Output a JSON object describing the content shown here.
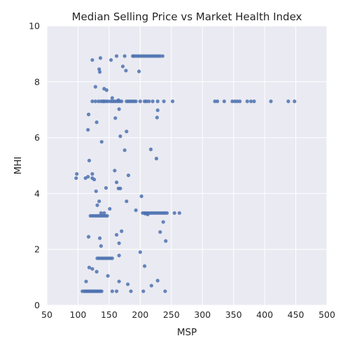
{
  "chart_data": {
    "type": "scatter",
    "title": "Median Selling Price vs Market Health Index",
    "xlabel": "MSP",
    "ylabel": "MHI",
    "xlim": [
      50,
      500
    ],
    "ylim": [
      0,
      10
    ],
    "x_ticks": [
      "50",
      "100",
      "150",
      "200",
      "250",
      "300",
      "350",
      "400",
      "450",
      "500"
    ],
    "y_ticks": [
      "0",
      "2",
      "4",
      "6",
      "8",
      "10"
    ],
    "grid": true,
    "colors": {
      "point": "#4c72b0",
      "background": "#eaeaf2",
      "grid": "#ffffff"
    },
    "series": [
      {
        "points": [
          [
            107,
            0.5
          ],
          [
            110,
            0.5
          ],
          [
            112,
            0.5
          ],
          [
            114,
            0.5
          ],
          [
            116,
            0.5
          ],
          [
            118,
            0.5
          ],
          [
            120,
            0.5
          ],
          [
            122,
            0.5
          ],
          [
            124,
            0.5
          ],
          [
            126,
            0.5
          ],
          [
            128,
            0.5
          ],
          [
            130,
            0.5
          ],
          [
            132,
            0.5
          ],
          [
            134,
            0.5
          ],
          [
            136,
            0.5
          ],
          [
            138,
            0.5
          ],
          [
            155,
            0.5
          ],
          [
            162,
            0.5
          ],
          [
            185,
            0.5
          ],
          [
            205,
            0.5
          ],
          [
            240,
            0.5
          ],
          [
            113,
            0.85
          ],
          [
            148,
            1.05
          ],
          [
            166,
            0.85
          ],
          [
            180,
            0.75
          ],
          [
            218,
            0.7
          ],
          [
            228,
            0.88
          ],
          [
            118,
            1.35
          ],
          [
            123,
            1.3
          ],
          [
            130,
            1.2
          ],
          [
            207,
            1.4
          ],
          [
            131,
            1.68
          ],
          [
            134,
            1.68
          ],
          [
            137,
            1.68
          ],
          [
            140,
            1.68
          ],
          [
            143,
            1.68
          ],
          [
            146,
            1.68
          ],
          [
            149,
            1.68
          ],
          [
            152,
            1.68
          ],
          [
            155,
            1.68
          ],
          [
            166,
            1.78
          ],
          [
            200,
            1.9
          ],
          [
            137,
            2.12
          ],
          [
            135,
            2.4
          ],
          [
            117,
            2.45
          ],
          [
            162,
            2.52
          ],
          [
            166,
            2.22
          ],
          [
            170,
            2.65
          ],
          [
            232,
            2.62
          ],
          [
            241,
            2.3
          ],
          [
            237,
            2.98
          ],
          [
            120,
            3.2
          ],
          [
            123,
            3.2
          ],
          [
            126,
            3.2
          ],
          [
            129,
            3.2
          ],
          [
            132,
            3.2
          ],
          [
            135,
            3.2
          ],
          [
            138,
            3.2
          ],
          [
            141,
            3.2
          ],
          [
            144,
            3.2
          ],
          [
            147,
            3.2
          ],
          [
            131,
            3.58
          ],
          [
            134,
            3.72
          ],
          [
            137,
            3.3
          ],
          [
            142,
            3.3
          ],
          [
            151,
            3.45
          ],
          [
            178,
            3.72
          ],
          [
            193,
            3.4
          ],
          [
            204,
            3.3
          ],
          [
            207,
            3.3
          ],
          [
            210,
            3.3
          ],
          [
            213,
            3.3
          ],
          [
            216,
            3.3
          ],
          [
            219,
            3.3
          ],
          [
            222,
            3.3
          ],
          [
            225,
            3.3
          ],
          [
            228,
            3.3
          ],
          [
            231,
            3.3
          ],
          [
            234,
            3.3
          ],
          [
            237,
            3.3
          ],
          [
            240,
            3.3
          ],
          [
            243,
            3.3
          ],
          [
            255,
            3.3
          ],
          [
            263,
            3.3
          ],
          [
            202,
            3.9
          ],
          [
            212,
            3.25
          ],
          [
            208,
            3.28
          ],
          [
            129,
            4.08
          ],
          [
            145,
            4.2
          ],
          [
            165,
            4.18
          ],
          [
            168,
            4.18
          ],
          [
            162,
            4.4
          ],
          [
            97,
            4.55
          ],
          [
            98,
            4.7
          ],
          [
            112,
            4.55
          ],
          [
            116,
            4.6
          ],
          [
            123,
            4.7
          ],
          [
            123,
            4.55
          ],
          [
            126,
            4.5
          ],
          [
            159,
            4.82
          ],
          [
            181,
            4.65
          ],
          [
            118,
            5.18
          ],
          [
            138,
            5.85
          ],
          [
            168,
            6.05
          ],
          [
            175,
            5.55
          ],
          [
            217,
            5.58
          ],
          [
            226,
            5.25
          ],
          [
            116,
            6.28
          ],
          [
            117,
            6.83
          ],
          [
            130,
            6.55
          ],
          [
            160,
            6.7
          ],
          [
            166,
            7.02
          ],
          [
            178,
            6.22
          ],
          [
            227,
            6.72
          ],
          [
            228,
            6.98
          ],
          [
            123,
            7.3
          ],
          [
            128,
            7.3
          ],
          [
            133,
            7.3
          ],
          [
            137,
            7.3
          ],
          [
            140,
            7.3
          ],
          [
            142,
            7.3
          ],
          [
            145,
            7.3
          ],
          [
            148,
            7.3
          ],
          [
            152,
            7.3
          ],
          [
            155,
            7.3
          ],
          [
            158,
            7.3
          ],
          [
            161,
            7.3
          ],
          [
            164,
            7.3
          ],
          [
            167,
            7.3
          ],
          [
            170,
            7.3
          ],
          [
            178,
            7.3
          ],
          [
            181,
            7.3
          ],
          [
            184,
            7.3
          ],
          [
            187,
            7.3
          ],
          [
            190,
            7.3
          ],
          [
            193,
            7.3
          ],
          [
            200,
            7.3
          ],
          [
            207,
            7.3
          ],
          [
            210,
            7.3
          ],
          [
            214,
            7.3
          ],
          [
            220,
            7.3
          ],
          [
            228,
            7.3
          ],
          [
            238,
            7.3
          ],
          [
            252,
            7.3
          ],
          [
            155,
            7.42
          ],
          [
            165,
            7.34
          ],
          [
            320,
            7.3
          ],
          [
            324,
            7.3
          ],
          [
            335,
            7.3
          ],
          [
            348,
            7.3
          ],
          [
            352,
            7.3
          ],
          [
            356,
            7.3
          ],
          [
            360,
            7.3
          ],
          [
            372,
            7.3
          ],
          [
            378,
            7.3
          ],
          [
            383,
            7.3
          ],
          [
            410,
            7.3
          ],
          [
            438,
            7.3
          ],
          [
            448,
            7.3
          ],
          [
            128,
            7.82
          ],
          [
            142,
            7.75
          ],
          [
            146,
            7.7
          ],
          [
            135,
            8.35
          ],
          [
            134,
            8.45
          ],
          [
            172,
            8.55
          ],
          [
            177,
            8.4
          ],
          [
            198,
            8.37
          ],
          [
            123,
            8.78
          ],
          [
            136,
            8.85
          ],
          [
            153,
            8.78
          ],
          [
            162,
            8.92
          ],
          [
            175,
            8.92
          ],
          [
            188,
            8.92
          ],
          [
            190,
            8.92
          ],
          [
            193,
            8.92
          ],
          [
            196,
            8.92
          ],
          [
            199,
            8.92
          ],
          [
            202,
            8.92
          ],
          [
            205,
            8.92
          ],
          [
            208,
            8.92
          ],
          [
            211,
            8.92
          ],
          [
            214,
            8.92
          ],
          [
            217,
            8.92
          ],
          [
            220,
            8.92
          ],
          [
            223,
            8.92
          ],
          [
            226,
            8.92
          ],
          [
            229,
            8.92
          ],
          [
            232,
            8.92
          ],
          [
            236,
            8.92
          ]
        ]
      }
    ]
  }
}
